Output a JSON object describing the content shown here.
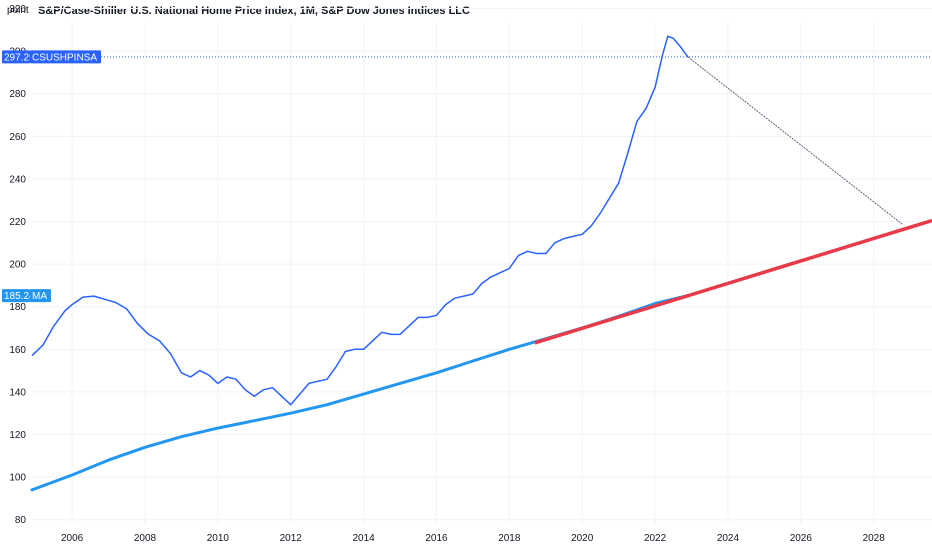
{
  "header": {
    "unit": "point",
    "title": "S&P/Case-Shiller U.S. National Home Price Index, 1M, S&P Dow Jones Indices LLC"
  },
  "colors": {
    "price_line": "#2962ff",
    "ma_line": "#2196f3",
    "trend_line": "#e83a49",
    "projection_line": "#5d6678",
    "price_tag": "#2962ff",
    "ma_tag": "#2196f3",
    "grid": "#f0f3fa"
  },
  "chart_data": {
    "type": "line",
    "title": "S&P/Case-Shiller U.S. National Home Price Index, 1M, S&P Dow Jones Indices LLC",
    "xlabel": "",
    "ylabel": "point",
    "xlim": [
      2004.9,
      2029.6
    ],
    "ylim": [
      78,
      324
    ],
    "grid": true,
    "x_ticks": [
      "2006",
      "2008",
      "2010",
      "2012",
      "2014",
      "2016",
      "2018",
      "2020",
      "2022",
      "2024",
      "2026",
      "2028"
    ],
    "y_ticks": [
      "80",
      "100",
      "120",
      "140",
      "160",
      "180",
      "200",
      "220",
      "240",
      "260",
      "280",
      "300",
      "320"
    ],
    "series": [
      {
        "name": "CSUSHPINSA",
        "x": [
          2004.9,
          2005.2,
          2005.5,
          2005.8,
          2006.0,
          2006.3,
          2006.6,
          2006.9,
          2007.2,
          2007.5,
          2007.8,
          2008.1,
          2008.4,
          2008.7,
          2009.0,
          2009.25,
          2009.5,
          2009.75,
          2010.0,
          2010.25,
          2010.5,
          2010.75,
          2011.0,
          2011.25,
          2011.5,
          2011.75,
          2012.0,
          2012.25,
          2012.5,
          2012.75,
          2013.0,
          2013.25,
          2013.5,
          2013.75,
          2014.0,
          2014.25,
          2014.5,
          2014.75,
          2015.0,
          2015.25,
          2015.5,
          2015.75,
          2016.0,
          2016.25,
          2016.5,
          2016.75,
          2017.0,
          2017.25,
          2017.5,
          2017.75,
          2018.0,
          2018.25,
          2018.5,
          2018.75,
          2019.0,
          2019.25,
          2019.5,
          2019.75,
          2020.0,
          2020.25,
          2020.5,
          2020.75,
          2021.0,
          2021.25,
          2021.5,
          2021.75,
          2022.0,
          2022.2,
          2022.35,
          2022.5,
          2022.7,
          2022.9
        ],
        "y": [
          157,
          162,
          171,
          178,
          181,
          184.5,
          185,
          183.5,
          182,
          179,
          172,
          167,
          164,
          158,
          149,
          147,
          150,
          148,
          144,
          147,
          146,
          141,
          138,
          141,
          142,
          138,
          134,
          139,
          144,
          145,
          146,
          152,
          159,
          160,
          160,
          164,
          168,
          167,
          167,
          171,
          175,
          175,
          176,
          181,
          184,
          185,
          186,
          191,
          194,
          196,
          198,
          204,
          206,
          205,
          205,
          210,
          212,
          213,
          214,
          218,
          224,
          231,
          238,
          252,
          267,
          273,
          283,
          298,
          307,
          306,
          302,
          297.29
        ]
      },
      {
        "name": "MA",
        "x": [
          2004.9,
          2006,
          2007,
          2008,
          2009,
          2010,
          2011,
          2012,
          2013,
          2014,
          2015,
          2016,
          2017,
          2018,
          2019,
          2020,
          2021,
          2022,
          2022.9
        ],
        "y": [
          94,
          101,
          108,
          114,
          119,
          123,
          126.5,
          130,
          134,
          139,
          144,
          149,
          154.5,
          160,
          165,
          170,
          175.5,
          181.5,
          185.24
        ]
      }
    ],
    "trend_line": {
      "x": [
        2018.7,
        2029.6
      ],
      "y": [
        163,
        220.5
      ]
    },
    "projection_line": {
      "x": [
        2022.9,
        2028.8
      ],
      "y": [
        297.29,
        218.5
      ]
    },
    "price_marker": {
      "value": "297.29",
      "label": "CSUSHPINSA"
    },
    "ma_marker": {
      "value": "185.24",
      "label": "MA"
    }
  }
}
